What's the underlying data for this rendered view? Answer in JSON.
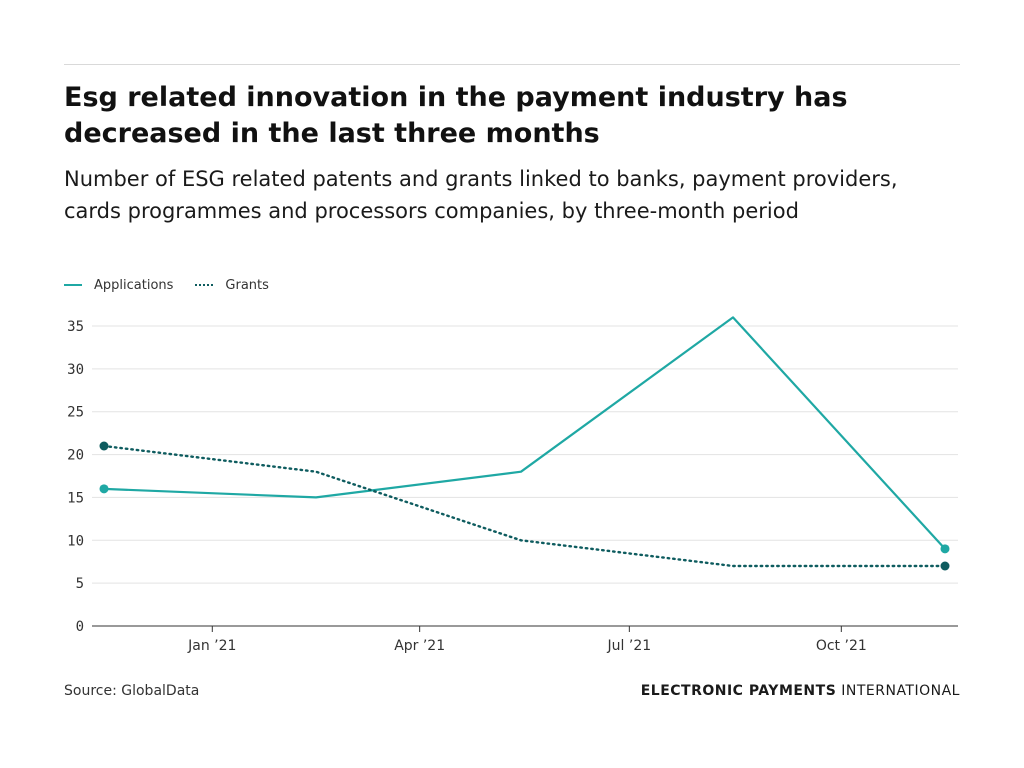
{
  "header": {
    "title": "Esg related innovation in the payment industry has decreased in the last three months",
    "subtitle": "Number of ESG related patents and grants linked to banks, payment providers, cards programmes and processors companies, by three-month period"
  },
  "footer": {
    "source": "Source: GlobalData",
    "brand_bold": "ELECTRONIC PAYMENTS",
    "brand_light": " INTERNATIONAL"
  },
  "colors": {
    "applications": "#1fa8a4",
    "grants": "#0e5c5f",
    "grid": "#e3e3e3",
    "axis": "#333333"
  },
  "chart_data": {
    "type": "line",
    "x": [
      "2020-11-15",
      "2021-02-15",
      "2021-05-15",
      "2021-08-15",
      "2021-11-15"
    ],
    "x_tick_labels": [
      "Jan ’21",
      "Apr ’21",
      "Jul ’21",
      "Oct ’21"
    ],
    "x_ticks": [
      "2021-01-01",
      "2021-04-01",
      "2021-07-01",
      "2021-10-01"
    ],
    "series": [
      {
        "name": "Applications",
        "values": [
          16,
          15,
          18,
          36,
          9
        ],
        "style": "solid",
        "color": "#1fa8a4"
      },
      {
        "name": "Grants",
        "values": [
          21,
          18,
          10,
          7,
          7
        ],
        "style": "dotted",
        "color": "#0e5c5f"
      }
    ],
    "ylim": [
      0,
      35
    ],
    "y_ticks": [
      0,
      5,
      10,
      15,
      20,
      25,
      30,
      35
    ],
    "grid": true,
    "legend": "top-left",
    "end_markers": true
  }
}
